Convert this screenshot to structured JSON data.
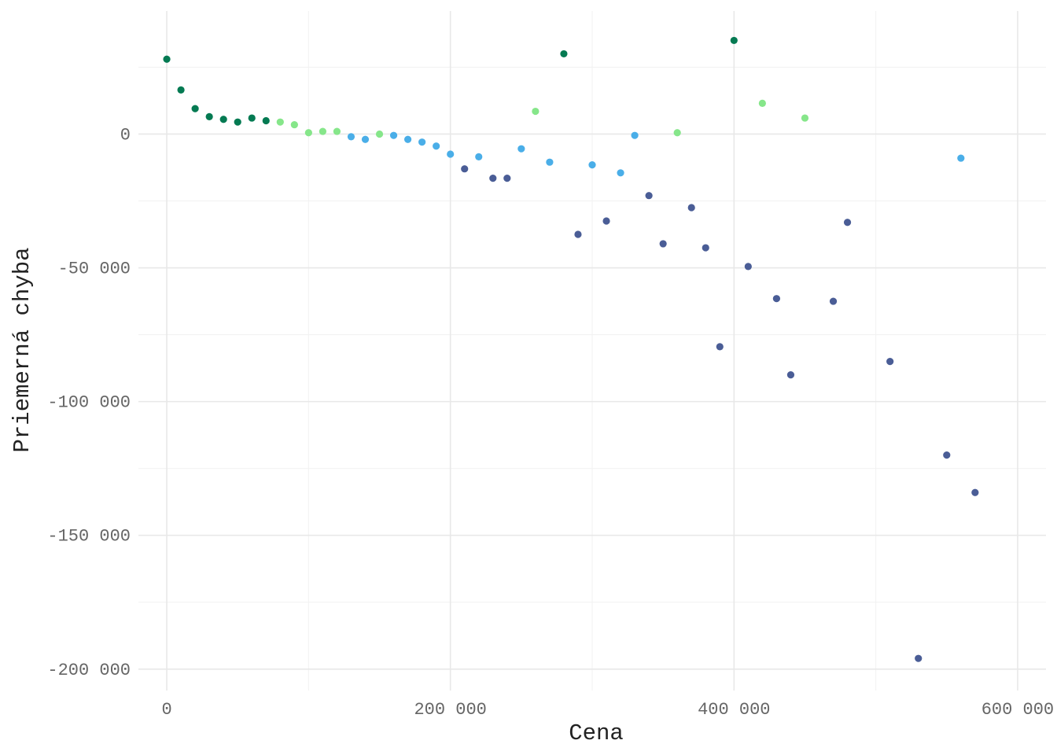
{
  "chart_data": {
    "type": "scatter",
    "xlabel": "Cena",
    "ylabel": "Priemerná chyba",
    "xlim": [
      -20000,
      620000
    ],
    "ylim": [
      -208000,
      46000
    ],
    "x_ticks": [
      0,
      200000,
      400000,
      600000
    ],
    "x_tick_labels": [
      "0",
      "200 000",
      "400 000",
      "600 000"
    ],
    "y_ticks": [
      0,
      -50000,
      -100000,
      -150000,
      -200000
    ],
    "y_tick_labels": [
      "0",
      "-50 000",
      "-100 000",
      "-150 000",
      "-200 000"
    ],
    "grid": true,
    "legend": "none",
    "colors": {
      "dark_green": "#047a52",
      "light_green": "#86e68a",
      "light_blue": "#4aaee8",
      "navy": "#4a5d96"
    },
    "points": [
      {
        "x": 0,
        "y": 28000,
        "color": "dark_green"
      },
      {
        "x": 10000,
        "y": 16500,
        "color": "dark_green"
      },
      {
        "x": 20000,
        "y": 9500,
        "color": "dark_green"
      },
      {
        "x": 30000,
        "y": 6500,
        "color": "dark_green"
      },
      {
        "x": 40000,
        "y": 5500,
        "color": "dark_green"
      },
      {
        "x": 50000,
        "y": 4500,
        "color": "dark_green"
      },
      {
        "x": 60000,
        "y": 6000,
        "color": "dark_green"
      },
      {
        "x": 70000,
        "y": 5000,
        "color": "dark_green"
      },
      {
        "x": 80000,
        "y": 4500,
        "color": "light_green"
      },
      {
        "x": 90000,
        "y": 3500,
        "color": "light_green"
      },
      {
        "x": 100000,
        "y": 500,
        "color": "light_green"
      },
      {
        "x": 110000,
        "y": 1000,
        "color": "light_green"
      },
      {
        "x": 120000,
        "y": 1000,
        "color": "light_green"
      },
      {
        "x": 130000,
        "y": -1000,
        "color": "light_blue"
      },
      {
        "x": 140000,
        "y": -2000,
        "color": "light_blue"
      },
      {
        "x": 150000,
        "y": 0,
        "color": "light_green"
      },
      {
        "x": 160000,
        "y": -500,
        "color": "light_blue"
      },
      {
        "x": 170000,
        "y": -2000,
        "color": "light_blue"
      },
      {
        "x": 180000,
        "y": -3000,
        "color": "light_blue"
      },
      {
        "x": 190000,
        "y": -4500,
        "color": "light_blue"
      },
      {
        "x": 200000,
        "y": -7500,
        "color": "light_blue"
      },
      {
        "x": 210000,
        "y": -13000,
        "color": "navy"
      },
      {
        "x": 220000,
        "y": -8500,
        "color": "light_blue"
      },
      {
        "x": 230000,
        "y": -16500,
        "color": "navy"
      },
      {
        "x": 240000,
        "y": -16500,
        "color": "navy"
      },
      {
        "x": 250000,
        "y": -5500,
        "color": "light_blue"
      },
      {
        "x": 260000,
        "y": 8500,
        "color": "light_green"
      },
      {
        "x": 270000,
        "y": -10500,
        "color": "light_blue"
      },
      {
        "x": 280000,
        "y": 30000,
        "color": "dark_green"
      },
      {
        "x": 290000,
        "y": -37500,
        "color": "navy"
      },
      {
        "x": 300000,
        "y": -11500,
        "color": "light_blue"
      },
      {
        "x": 310000,
        "y": -32500,
        "color": "navy"
      },
      {
        "x": 320000,
        "y": -14500,
        "color": "light_blue"
      },
      {
        "x": 330000,
        "y": -500,
        "color": "light_blue"
      },
      {
        "x": 340000,
        "y": -23000,
        "color": "navy"
      },
      {
        "x": 350000,
        "y": -41000,
        "color": "navy"
      },
      {
        "x": 360000,
        "y": 500,
        "color": "light_green"
      },
      {
        "x": 370000,
        "y": -27500,
        "color": "navy"
      },
      {
        "x": 380000,
        "y": -42500,
        "color": "navy"
      },
      {
        "x": 390000,
        "y": -79500,
        "color": "navy"
      },
      {
        "x": 400000,
        "y": 35000,
        "color": "dark_green"
      },
      {
        "x": 410000,
        "y": -49500,
        "color": "navy"
      },
      {
        "x": 420000,
        "y": 11500,
        "color": "light_green"
      },
      {
        "x": 430000,
        "y": -61500,
        "color": "navy"
      },
      {
        "x": 440000,
        "y": -90000,
        "color": "navy"
      },
      {
        "x": 450000,
        "y": 6000,
        "color": "light_green"
      },
      {
        "x": 470000,
        "y": -62500,
        "color": "navy"
      },
      {
        "x": 480000,
        "y": -33000,
        "color": "navy"
      },
      {
        "x": 510000,
        "y": -85000,
        "color": "navy"
      },
      {
        "x": 530000,
        "y": -196000,
        "color": "navy"
      },
      {
        "x": 550000,
        "y": -120000,
        "color": "navy"
      },
      {
        "x": 560000,
        "y": -9000,
        "color": "light_blue"
      },
      {
        "x": 570000,
        "y": -134000,
        "color": "navy"
      }
    ]
  }
}
